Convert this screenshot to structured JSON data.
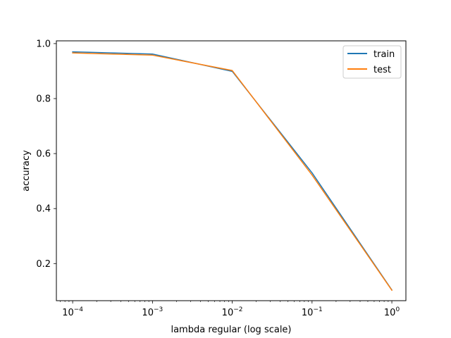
{
  "chart_data": {
    "type": "line",
    "title": "",
    "xlabel": "lambda regular (log scale)",
    "ylabel": "accuracy",
    "x_scale": "log",
    "xlim": [
      6.25e-05,
      1.5
    ],
    "ylim": [
      0.065,
      1.01
    ],
    "x": [
      0.0001,
      0.001,
      0.01,
      0.1,
      1
    ],
    "x_ticks": [
      {
        "value": 0.0001,
        "base": "10",
        "exp": "−4"
      },
      {
        "value": 0.001,
        "base": "10",
        "exp": "−3"
      },
      {
        "value": 0.01,
        "base": "10",
        "exp": "−2"
      },
      {
        "value": 0.1,
        "base": "10",
        "exp": "−1"
      },
      {
        "value": 1,
        "base": "10",
        "exp": "0"
      }
    ],
    "y_ticks": [
      {
        "value": 0.2,
        "label": "0.2"
      },
      {
        "value": 0.4,
        "label": "0.4"
      },
      {
        "value": 0.6,
        "label": "0.6"
      },
      {
        "value": 0.8,
        "label": "0.8"
      },
      {
        "value": 1.0,
        "label": "1.0"
      }
    ],
    "grid": false,
    "legend_position": "top-right",
    "series": [
      {
        "name": "train",
        "color": "#1f77b4",
        "values": [
          0.97,
          0.962,
          0.899,
          0.53,
          0.104
        ]
      },
      {
        "name": "test",
        "color": "#ff7f0e",
        "values": [
          0.966,
          0.958,
          0.902,
          0.522,
          0.103
        ]
      }
    ]
  }
}
